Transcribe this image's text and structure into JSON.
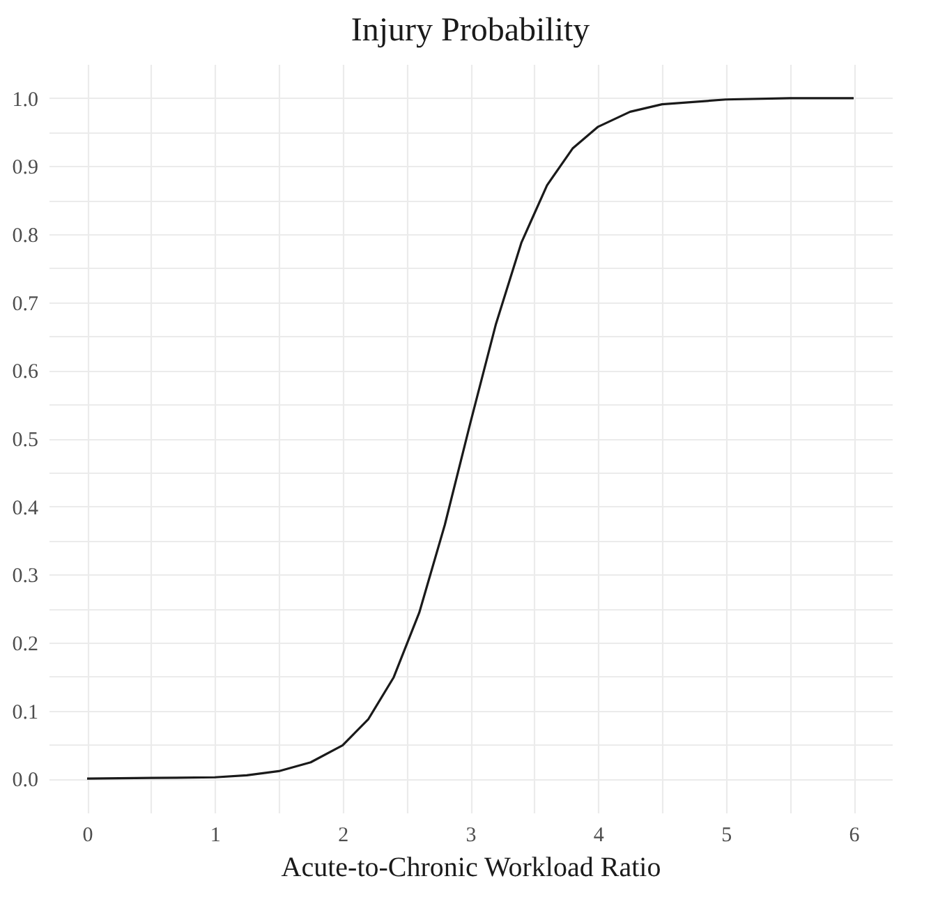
{
  "chart_data": {
    "type": "line",
    "title": "Injury Probability",
    "xlabel": "Acute-to-Chronic Workload Ratio",
    "x": [
      0,
      0.5,
      1,
      1.25,
      1.5,
      1.75,
      2,
      2.2,
      2.4,
      2.6,
      2.8,
      3,
      3.2,
      3.4,
      3.6,
      3.8,
      4,
      4.25,
      4.5,
      5,
      5.5,
      6
    ],
    "series": [
      {
        "color": "#1a1a1a",
        "values": [
          0,
          0.001,
          0.002,
          0.005,
          0.011,
          0.024,
          0.049,
          0.087,
          0.149,
          0.244,
          0.373,
          0.523,
          0.668,
          0.788,
          0.872,
          0.926,
          0.958,
          0.98,
          0.991,
          0.998,
          1,
          1
        ]
      }
    ],
    "xlim": [
      -0.3,
      6.3
    ],
    "ylim": [
      -0.05,
      1.05
    ],
    "xticks": [
      0,
      {
        "value": 0.5,
        "label": null
      },
      1,
      {
        "value": 1.5,
        "label": null
      },
      2,
      {
        "value": 2.5,
        "label": null
      },
      3,
      {
        "value": 3.5,
        "label": null
      },
      4,
      {
        "value": 4.5,
        "label": null
      },
      5,
      {
        "value": 5.5,
        "label": null
      },
      6
    ],
    "yticks": [
      {
        "value": 0,
        "label": "0.0"
      },
      {
        "value": 0.05,
        "label": null
      },
      {
        "value": 0.1,
        "label": "0.1"
      },
      {
        "value": 0.15,
        "label": null
      },
      {
        "value": 0.2,
        "label": "0.2"
      },
      {
        "value": 0.25,
        "label": null
      },
      {
        "value": 0.3,
        "label": "0.3"
      },
      {
        "value": 0.35,
        "label": null
      },
      {
        "value": 0.4,
        "label": "0.4"
      },
      {
        "value": 0.45,
        "label": null
      },
      {
        "value": 0.5,
        "label": "0.5"
      },
      {
        "value": 0.55,
        "label": null
      },
      {
        "value": 0.6,
        "label": "0.6"
      },
      {
        "value": 0.65,
        "label": null
      },
      {
        "value": 0.7,
        "label": "0.7"
      },
      {
        "value": 0.75,
        "label": null
      },
      {
        "value": 0.8,
        "label": "0.8"
      },
      {
        "value": 0.85,
        "label": null
      },
      {
        "value": 0.9,
        "label": "0.9"
      },
      {
        "value": 0.95,
        "label": null
      },
      {
        "value": 1,
        "label": "1.0"
      }
    ],
    "grid": true,
    "marker": "none",
    "line_style": "solid"
  }
}
